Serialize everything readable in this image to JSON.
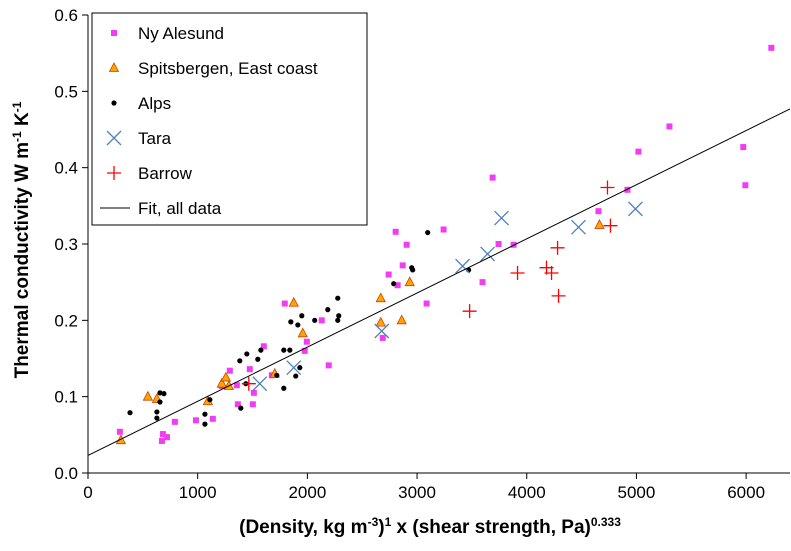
{
  "chart_data": {
    "type": "scatter",
    "xlabel": [
      "(Density, kg m",
      "-3",
      ")",
      "1",
      " x (shear strength, Pa)",
      "0.333"
    ],
    "ylabel": [
      "Thermal conductivity W m",
      "-1",
      " K",
      "-1"
    ],
    "xlim": [
      0,
      6400
    ],
    "ylim": [
      0,
      0.6
    ],
    "xticks": [
      0,
      1000,
      2000,
      3000,
      4000,
      5000,
      6000
    ],
    "yticks": [
      {
        "value": 0,
        "label": "0.0"
      },
      0.1,
      0.2,
      0.3,
      0.4,
      0.5,
      0.6
    ],
    "grid": false,
    "legend": "upper left",
    "series": [
      {
        "name": "Ny Alesund",
        "marker": "square",
        "color": "#f23cf2",
        "x": [
          291,
          674,
          683,
          720,
          792,
          984,
          1138,
          1220,
          1293,
          1357,
          1366,
          1475,
          1503,
          1512,
          1603,
          1676,
          1794,
          1976,
          1995,
          2131,
          2195,
          2687,
          2741,
          2805,
          2823,
          2869,
          2905,
          3087,
          3242,
          3597,
          3689,
          3743,
          3880,
          4654,
          4918,
          5018,
          5301,
          5974,
          5993,
          6230
        ],
        "values": [
          0.054,
          0.042,
          0.051,
          0.047,
          0.067,
          0.069,
          0.071,
          0.114,
          0.134,
          0.115,
          0.09,
          0.136,
          0.09,
          0.105,
          0.166,
          0.128,
          0.222,
          0.16,
          0.172,
          0.2,
          0.141,
          0.177,
          0.26,
          0.316,
          0.246,
          0.272,
          0.299,
          0.222,
          0.319,
          0.25,
          0.387,
          0.3,
          0.299,
          0.343,
          0.371,
          0.421,
          0.454,
          0.427,
          0.377,
          0.557
        ]
      },
      {
        "name": "Spitsbergen, East coast",
        "marker": "triangle",
        "color": "#ffa500",
        "x": [
          300,
          546,
          628,
          1093,
          1220,
          1257,
          1284,
          1703,
          1876,
          1958,
          2669,
          2669,
          2860,
          2933,
          4663
        ],
        "values": [
          0.043,
          0.1,
          0.097,
          0.094,
          0.117,
          0.125,
          0.114,
          0.13,
          0.223,
          0.183,
          0.229,
          0.197,
          0.2,
          0.25,
          0.325
        ]
      },
      {
        "name": "Alps",
        "marker": "dot",
        "color": "#000000",
        "x": [
          383,
          628,
          628,
          656,
          656,
          692,
          1066,
          1066,
          1111,
          1384,
          1448,
          1439,
          1393,
          1548,
          1576,
          1721,
          1785,
          1785,
          1840,
          1849,
          1913,
          1894,
          1931,
          1949,
          2067,
          2186,
          2277,
          2277,
          2286,
          2787,
          2960,
          2951,
          3097,
          3470
        ],
        "values": [
          0.079,
          0.08,
          0.072,
          0.105,
          0.093,
          0.104,
          0.077,
          0.064,
          0.096,
          0.147,
          0.156,
          0.117,
          0.085,
          0.149,
          0.161,
          0.128,
          0.111,
          0.161,
          0.161,
          0.198,
          0.194,
          0.127,
          0.138,
          0.206,
          0.2,
          0.214,
          0.229,
          0.2,
          0.206,
          0.248,
          0.266,
          0.269,
          0.315,
          0.266
        ]
      },
      {
        "name": "Tara",
        "marker": "x",
        "color": "#4f81bd",
        "x": [
          1566,
          1876,
          2678,
          3415,
          3643,
          3770,
          4472,
          4991
        ],
        "values": [
          0.117,
          0.138,
          0.186,
          0.271,
          0.287,
          0.334,
          0.322,
          0.346
        ]
      },
      {
        "name": "Barrow",
        "marker": "plus",
        "color": "#ff0000",
        "x": [
          1466,
          3479,
          3916,
          4180,
          4226,
          4281,
          4290,
          4736,
          4763
        ],
        "values": [
          0.117,
          0.212,
          0.262,
          0.269,
          0.262,
          0.295,
          0.232,
          0.374,
          0.324
        ]
      },
      {
        "name": "Fit, all data",
        "marker": "line",
        "color": "#000000",
        "x": [
          0,
          6400
        ],
        "values": [
          0.023,
          0.477
        ]
      }
    ]
  }
}
